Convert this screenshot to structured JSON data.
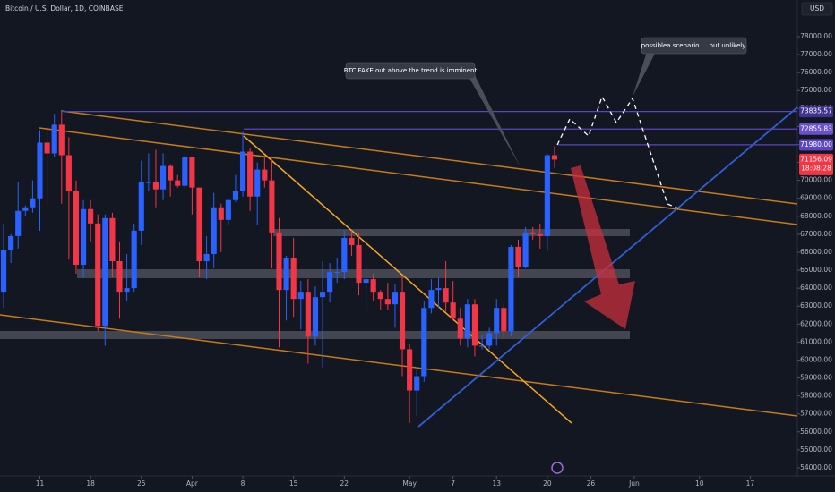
{
  "chart_data": {
    "type": "candlestick",
    "title": "Bitcoin / U.S. Dollar, 1D, COINBASE",
    "currency": "USD",
    "annotations": [
      "BTC FAKE out above the trend is imminent",
      "possiblea scenario ... but unlikely"
    ],
    "up_color": "#2962ff",
    "down_color": "#f23645",
    "grid": false,
    "x": [
      "03-06",
      "03-07",
      "03-08",
      "03-09",
      "03-10",
      "03-11",
      "03-12",
      "03-13",
      "03-14",
      "03-15",
      "03-16",
      "03-17",
      "03-18",
      "03-19",
      "03-20",
      "03-21",
      "03-22",
      "03-23",
      "03-24",
      "03-25",
      "03-26",
      "03-27",
      "03-28",
      "03-29",
      "03-30",
      "03-31",
      "04-01",
      "04-02",
      "04-03",
      "04-04",
      "04-05",
      "04-06",
      "04-07",
      "04-08",
      "04-09",
      "04-10",
      "04-11",
      "04-12",
      "04-13",
      "04-14",
      "04-15",
      "04-16",
      "04-17",
      "04-18",
      "04-19",
      "04-20",
      "04-21",
      "04-22",
      "04-23",
      "04-24",
      "04-25",
      "04-26",
      "04-27",
      "04-28",
      "04-29",
      "04-30",
      "05-01",
      "05-02",
      "05-03",
      "05-04",
      "05-05",
      "05-06",
      "05-07",
      "05-08",
      "05-09",
      "05-10",
      "05-11",
      "05-12",
      "05-13",
      "05-14",
      "05-15",
      "05-16",
      "05-17",
      "05-18",
      "05-19",
      "05-20",
      "05-21"
    ],
    "open": [
      63800,
      66100,
      66900,
      68300,
      68500,
      69000,
      72100,
      71500,
      73100,
      71400,
      69400,
      65300,
      68400,
      67600,
      61900,
      67900,
      65500,
      63800,
      64000,
      67200,
      69900,
      69900,
      69500,
      70800,
      70000,
      69700,
      71300,
      69600,
      65500,
      65900,
      68500,
      67800,
      68900,
      69400,
      71600,
      69100,
      70600,
      70000,
      67100,
      63900,
      65700,
      63400,
      63800,
      61300,
      63500,
      63800,
      64900,
      64900,
      66800,
      66400,
      64300,
      64500,
      63800,
      63400,
      63100,
      63800,
      60600,
      58300,
      59100,
      62900,
      63900,
      64000,
      63200,
      62300,
      61200,
      63100,
      60800,
      60800,
      61500,
      62900,
      61600,
      66300,
      65200,
      67100,
      67000,
      66900,
      71400
    ],
    "high": [
      67600,
      67000,
      69900,
      68600,
      70000,
      72800,
      73000,
      73700,
      73800,
      72400,
      70000,
      68900,
      68900,
      68100,
      68100,
      68200,
      66600,
      65900,
      67600,
      71100,
      71500,
      71700,
      71500,
      70900,
      70300,
      71400,
      71300,
      69600,
      66900,
      69300,
      68700,
      69000,
      70300,
      72700,
      71800,
      71000,
      71300,
      71200,
      67900,
      65800,
      66800,
      64400,
      64500,
      64100,
      65500,
      65400,
      65700,
      67200,
      67200,
      67100,
      65300,
      64800,
      63900,
      64300,
      64200,
      64700,
      60900,
      59600,
      63300,
      64500,
      64600,
      65500,
      64400,
      62900,
      63400,
      63400,
      61400,
      61800,
      63400,
      63100,
      66400,
      66700,
      67400,
      67400,
      67600,
      71500,
      71900
    ],
    "low": [
      62900,
      65400,
      66200,
      68000,
      68200,
      67200,
      68600,
      71300,
      68700,
      65600,
      64800,
      64600,
      66600,
      61600,
      60800,
      64600,
      62300,
      63300,
      63800,
      66400,
      69400,
      68500,
      68900,
      69100,
      69600,
      69600,
      68100,
      64600,
      64500,
      65100,
      66000,
      67500,
      68800,
      69100,
      68300,
      67500,
      69600,
      65100,
      60700,
      62200,
      62400,
      61700,
      59800,
      60800,
      59600,
      63200,
      64300,
      64500,
      65800,
      63600,
      62800,
      63300,
      62800,
      62800,
      61800,
      59100,
      56500,
      56900,
      58800,
      62600,
      62900,
      62700,
      62200,
      60800,
      60700,
      60200,
      60600,
      60600,
      60800,
      61200,
      61300,
      64600,
      65100,
      66700,
      66200,
      66100,
      70700
    ],
    "close": [
      66100,
      66900,
      68300,
      68500,
      69000,
      72100,
      71500,
      73100,
      71400,
      69400,
      65300,
      68400,
      67600,
      61900,
      67900,
      65500,
      63800,
      64000,
      67200,
      69900,
      69900,
      69500,
      70800,
      70000,
      69700,
      71300,
      69600,
      65500,
      65900,
      68500,
      67800,
      68900,
      69400,
      71600,
      69100,
      70600,
      70000,
      67100,
      63900,
      65700,
      63400,
      63800,
      61300,
      63500,
      63800,
      64900,
      64900,
      66800,
      66400,
      64300,
      64500,
      63800,
      63400,
      63100,
      63800,
      60600,
      58300,
      59100,
      62900,
      63900,
      64000,
      63200,
      62300,
      61200,
      63100,
      60800,
      60800,
      61500,
      62900,
      61600,
      66300,
      65200,
      67100,
      67000,
      66900,
      71400,
      71156.09
    ],
    "xlim": [
      "03-06",
      "06-23"
    ],
    "xticks": [
      {
        "value": "03-11",
        "label": "11"
      },
      {
        "value": "03-18",
        "label": "18"
      },
      {
        "value": "03-25",
        "label": "25"
      },
      {
        "value": "04-01",
        "label": "Apr"
      },
      {
        "value": "04-08",
        "label": "8"
      },
      {
        "value": "04-15",
        "label": "15"
      },
      {
        "value": "04-22",
        "label": "22"
      },
      {
        "value": "05-01",
        "label": "May"
      },
      {
        "value": "05-07",
        "label": "7"
      },
      {
        "value": "05-13",
        "label": "13"
      },
      {
        "value": "05-20",
        "label": "20"
      },
      {
        "value": "05-26",
        "label": "26"
      },
      {
        "value": "06-01",
        "label": "Jun"
      },
      {
        "value": "06-10",
        "label": "10"
      },
      {
        "value": "06-17",
        "label": "17"
      }
    ],
    "ylim": [
      53550,
      80040
    ],
    "yticks": [
      {
        "value": 54000,
        "label": "54000.00"
      },
      {
        "value": 55000,
        "label": "55000.00"
      },
      {
        "value": 56000,
        "label": "56000.00"
      },
      {
        "value": 57000,
        "label": "57000.00"
      },
      {
        "value": 58000,
        "label": "58000.00"
      },
      {
        "value": 59000,
        "label": "59000.00"
      },
      {
        "value": 60000,
        "label": "60000.00"
      },
      {
        "value": 61000,
        "label": "61000.00"
      },
      {
        "value": 62000,
        "label": "62000.00"
      },
      {
        "value": 63000,
        "label": "63000.00"
      },
      {
        "value": 64000,
        "label": "64000.00"
      },
      {
        "value": 65000,
        "label": "65000.00"
      },
      {
        "value": 66000,
        "label": "66000.00"
      },
      {
        "value": 67000,
        "label": "67000.00"
      },
      {
        "value": 68000,
        "label": "68000.00"
      },
      {
        "value": 69000,
        "label": "69000.00"
      },
      {
        "value": 70000,
        "label": "70000.00"
      },
      {
        "value": 71000,
        "label": "71000.00"
      },
      {
        "value": 72000,
        "label": "72000.00"
      },
      {
        "value": 73000,
        "label": "73000.00"
      },
      {
        "value": 74000,
        "label": "74000.00"
      },
      {
        "value": 75000,
        "label": "75000.00"
      },
      {
        "value": 76000,
        "label": "76000.00"
      },
      {
        "value": 77000,
        "label": "77000.00"
      },
      {
        "value": 78000,
        "label": "78000.00"
      }
    ],
    "price_labels": [
      {
        "value": 73835.57,
        "label": "73835.57",
        "color": "#3f3391"
      },
      {
        "value": 72855.83,
        "label": "72855.83",
        "color": "#6a4fcf"
      },
      {
        "value": 71980.0,
        "label": "71980.00",
        "color": "#5b45c2"
      }
    ],
    "last_price": {
      "value": 71156.09,
      "label": "71156.09",
      "color": "#f23645"
    },
    "countdown": "18:08:28"
  }
}
